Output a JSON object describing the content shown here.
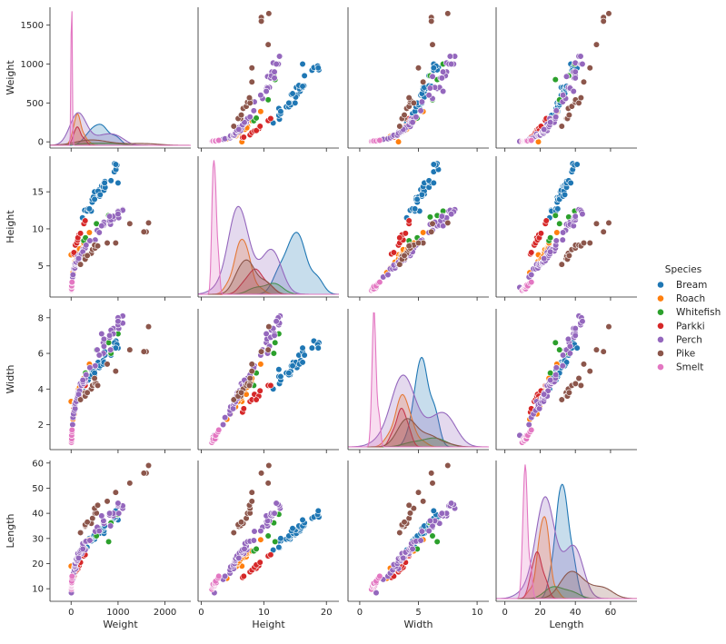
{
  "chart_data": {
    "type": "scatter",
    "subtype": "pairplot",
    "variables": [
      "Weight",
      "Height",
      "Width",
      "Length"
    ],
    "diagonal": "kde",
    "axes": {
      "Weight": {
        "lim": [
          -450,
          2550
        ],
        "ticks": [
          0,
          1000,
          2000
        ],
        "y_ticks": [
          0,
          500,
          1000,
          1500
        ],
        "y_lim": [
          -80,
          1730
        ]
      },
      "Height": {
        "lim": [
          -0.5,
          22
        ],
        "ticks": [
          0,
          10,
          20
        ],
        "y_ticks": [
          5,
          10,
          15
        ],
        "y_lim": [
          0.8,
          19.8
        ]
      },
      "Width": {
        "lim": [
          -1,
          11
        ],
        "ticks": [
          0,
          5,
          10
        ],
        "y_ticks": [
          2,
          4,
          6,
          8
        ],
        "y_lim": [
          0.6,
          8.5
        ]
      },
      "Length": {
        "lim": [
          -5,
          75
        ],
        "ticks": [
          0,
          20,
          40,
          60
        ],
        "y_ticks": [
          10,
          20,
          30,
          40,
          50,
          60
        ],
        "y_lim": [
          5,
          61
        ]
      }
    },
    "legend": {
      "title": "Species",
      "placement": "right"
    },
    "series": [
      {
        "name": "Bream",
        "color": "#1f77b4",
        "points": [
          [
            242,
            11.5,
            4.0,
            25.4
          ],
          [
            290,
            12.5,
            4.3,
            26.3
          ],
          [
            340,
            12.4,
            4.7,
            26.5
          ],
          [
            363,
            12.7,
            4.5,
            29.0
          ],
          [
            430,
            12.4,
            5.1,
            29.0
          ],
          [
            450,
            13.6,
            4.9,
            29.7
          ],
          [
            500,
            14.2,
            4.8,
            29.7
          ],
          [
            390,
            12.7,
            4.7,
            30.0
          ],
          [
            450,
            14.0,
            4.8,
            30.0
          ],
          [
            500,
            14.2,
            5.0,
            30.7
          ],
          [
            475,
            14.3,
            5.0,
            31.0
          ],
          [
            500,
            14.0,
            4.9,
            31.0
          ],
          [
            500,
            15.0,
            5.3,
            31.5
          ],
          [
            600,
            14.7,
            5.5,
            32.0
          ],
          [
            600,
            15.3,
            5.2,
            32.0
          ],
          [
            700,
            15.2,
            5.4,
            32.0
          ],
          [
            700,
            15.8,
            5.4,
            33.0
          ],
          [
            610,
            14.4,
            5.3,
            33.0
          ],
          [
            650,
            15.8,
            5.5,
            33.5
          ],
          [
            575,
            15.1,
            5.5,
            33.5
          ],
          [
            685,
            15.9,
            5.6,
            34.0
          ],
          [
            620,
            14.6,
            5.3,
            34.0
          ],
          [
            680,
            15.7,
            5.4,
            34.5
          ],
          [
            700,
            16.2,
            5.5,
            35.0
          ],
          [
            725,
            15.6,
            5.9,
            35.0
          ],
          [
            720,
            16.4,
            5.9,
            35.0
          ],
          [
            714,
            16.2,
            6.1,
            35.0
          ],
          [
            850,
            16.5,
            5.9,
            36.2
          ],
          [
            1000,
            16.2,
            6.3,
            37.4
          ],
          [
            920,
            17.7,
            6.3,
            38.0
          ],
          [
            955,
            18.0,
            6.7,
            38.5
          ],
          [
            925,
            18.8,
            6.6,
            38.5
          ],
          [
            975,
            18.6,
            6.5,
            39.5
          ],
          [
            950,
            18.7,
            6.3,
            41.0
          ]
        ]
      },
      {
        "name": "Roach",
        "color": "#ff7f0e",
        "points": [
          [
            0,
            6.5,
            3.3,
            19.0
          ],
          [
            40,
            4.1,
            2.3,
            14.1
          ],
          [
            69,
            4.7,
            2.6,
            18.2
          ],
          [
            78,
            5.6,
            3.2,
            18.8
          ],
          [
            87,
            5.5,
            3.0,
            19.8
          ],
          [
            120,
            5.8,
            3.6,
            20.0
          ],
          [
            110,
            5.9,
            3.3,
            20.5
          ],
          [
            120,
            6.1,
            3.5,
            21.0
          ],
          [
            150,
            6.4,
            3.5,
            22.0
          ],
          [
            145,
            6.4,
            3.6,
            22.0
          ],
          [
            160,
            6.9,
            3.7,
            22.5
          ],
          [
            140,
            6.0,
            3.8,
            22.5
          ],
          [
            169,
            7.2,
            3.7,
            22.7
          ],
          [
            161,
            7.0,
            4.0,
            23.5
          ],
          [
            200,
            7.4,
            4.1,
            24.0
          ],
          [
            180,
            7.3,
            4.1,
            24.2
          ],
          [
            290,
            7.4,
            4.5,
            24.9
          ],
          [
            272,
            8.0,
            4.4,
            25.2
          ],
          [
            390,
            9.5,
            5.4,
            29.5
          ],
          [
            270,
            8.1,
            4.6,
            25.0
          ]
        ]
      },
      {
        "name": "Whitefish",
        "color": "#2ca02c",
        "points": [
          [
            270,
            8.4,
            4.2,
            25.0
          ],
          [
            306,
            8.8,
            4.9,
            25.8
          ],
          [
            540,
            10.7,
            6.2,
            31.0
          ],
          [
            800,
            11.8,
            6.6,
            28.7
          ],
          [
            1000,
            12.4,
            7.1,
            39.6
          ],
          [
            850,
            11.6,
            6.0,
            36.2
          ]
        ]
      },
      {
        "name": "Parkki",
        "color": "#d62728",
        "points": [
          [
            55,
            6.6,
            2.7,
            14.5
          ],
          [
            60,
            6.8,
            2.9,
            15.0
          ],
          [
            90,
            7.8,
            3.3,
            16.7
          ],
          [
            120,
            8.1,
            3.4,
            17.4
          ],
          [
            150,
            8.8,
            3.6,
            18.1
          ],
          [
            140,
            8.5,
            3.7,
            18.5
          ],
          [
            170,
            9.2,
            3.6,
            19.2
          ],
          [
            145,
            8.8,
            3.4,
            19.5
          ],
          [
            200,
            9.4,
            3.9,
            20.5
          ],
          [
            273,
            10.7,
            4.2,
            23.0
          ],
          [
            300,
            11.1,
            4.2,
            23.5
          ]
        ]
      },
      {
        "name": "Perch",
        "color": "#9467bd",
        "points": [
          [
            5.9,
            2.1,
            1.4,
            8.4
          ],
          [
            32,
            3.5,
            2.0,
            13.7
          ],
          [
            40,
            3.8,
            2.4,
            15.0
          ],
          [
            51.5,
            4.6,
            2.6,
            16.2
          ],
          [
            70,
            4.6,
            2.8,
            17.4
          ],
          [
            100,
            5.2,
            3.3,
            18.0
          ],
          [
            78,
            4.7,
            3.0,
            18.7
          ],
          [
            80,
            5.1,
            3.1,
            19.0
          ],
          [
            85,
            5.1,
            2.9,
            19.6
          ],
          [
            85,
            5.3,
            3.2,
            20.0
          ],
          [
            110,
            5.3,
            3.5,
            21.0
          ],
          [
            115,
            5.4,
            3.5,
            21.0
          ],
          [
            125,
            5.4,
            3.3,
            21.0
          ],
          [
            130,
            5.5,
            3.5,
            21.3
          ],
          [
            120,
            5.6,
            3.4,
            22.0
          ],
          [
            120,
            5.5,
            3.5,
            22.0
          ],
          [
            130,
            5.7,
            3.6,
            22.0
          ],
          [
            135,
            5.6,
            3.5,
            22.0
          ],
          [
            110,
            5.5,
            3.3,
            22.0
          ],
          [
            130,
            5.9,
            3.5,
            22.5
          ],
          [
            150,
            5.8,
            3.8,
            22.5
          ],
          [
            145,
            5.8,
            3.6,
            22.7
          ],
          [
            150,
            5.7,
            3.6,
            23.0
          ],
          [
            170,
            6.3,
            3.8,
            23.5
          ],
          [
            225,
            6.8,
            4.2,
            24.0
          ],
          [
            145,
            6.3,
            3.6,
            24.0
          ],
          [
            188,
            6.1,
            3.9,
            24.2
          ],
          [
            180,
            6.5,
            3.9,
            24.5
          ],
          [
            197,
            6.4,
            4.3,
            25.0
          ],
          [
            218,
            6.6,
            4.2,
            25.5
          ],
          [
            300,
            7.3,
            4.4,
            25.5
          ],
          [
            260,
            7.0,
            4.3,
            26.2
          ],
          [
            265,
            7.2,
            4.4,
            26.5
          ],
          [
            250,
            7.2,
            4.4,
            27.0
          ],
          [
            250,
            7.0,
            4.4,
            28.0
          ],
          [
            300,
            7.4,
            4.6,
            28.7
          ],
          [
            320,
            7.8,
            4.8,
            28.9
          ],
          [
            514,
            8.5,
            5.3,
            32.8
          ],
          [
            556,
            9.8,
            6.2,
            34.5
          ],
          [
            840,
            10.6,
            6.2,
            35.0
          ],
          [
            685,
            10.4,
            6.6,
            36.5
          ],
          [
            700,
            10.5,
            6.8,
            36.0
          ],
          [
            700,
            10.9,
            6.4,
            37.0
          ],
          [
            690,
            10.6,
            6.0,
            37.0
          ],
          [
            900,
            11.3,
            7.4,
            39.0
          ],
          [
            650,
            10.4,
            7.1,
            39.0
          ],
          [
            820,
            11.1,
            6.9,
            39.3
          ],
          [
            850,
            11.2,
            7.3,
            40.0
          ],
          [
            900,
            11.7,
            7.1,
            40.0
          ],
          [
            1015,
            11.5,
            7.4,
            40.0
          ],
          [
            820,
            11.7,
            7.0,
            40.0
          ],
          [
            1100,
            12.6,
            8.1,
            42.0
          ],
          [
            1000,
            12.4,
            7.6,
            43.0
          ],
          [
            1100,
            12.5,
            7.7,
            43.0
          ],
          [
            1000,
            12.3,
            8.0,
            43.5
          ],
          [
            1000,
            12.0,
            7.8,
            44.0
          ],
          [
            160,
            6.0,
            3.7,
            22.2
          ],
          [
            250,
            6.9,
            4.5,
            25.8
          ],
          [
            400,
            8.4,
            5.2,
            29.2
          ],
          [
            600,
            9.5,
            5.9,
            33.0
          ]
        ]
      },
      {
        "name": "Pike",
        "color": "#8c564b",
        "points": [
          [
            200,
            5.2,
            3.4,
            32.3
          ],
          [
            300,
            6.0,
            3.8,
            34.8
          ],
          [
            300,
            6.3,
            3.6,
            35.1
          ],
          [
            300,
            5.9,
            3.6,
            35.5
          ],
          [
            430,
            6.7,
            4.0,
            36.0
          ],
          [
            345,
            6.4,
            3.8,
            36.5
          ],
          [
            456,
            7.2,
            4.2,
            38.0
          ],
          [
            510,
            7.4,
            4.3,
            40.0
          ],
          [
            540,
            7.8,
            4.3,
            40.1
          ],
          [
            500,
            7.8,
            4.6,
            42.0
          ],
          [
            567,
            7.7,
            4.2,
            43.2
          ],
          [
            770,
            8.1,
            5.4,
            44.8
          ],
          [
            950,
            8.1,
            5.0,
            48.3
          ],
          [
            1250,
            10.7,
            6.2,
            52.0
          ],
          [
            1600,
            9.6,
            6.1,
            56.0
          ],
          [
            1550,
            9.6,
            6.1,
            56.0
          ],
          [
            1650,
            10.8,
            7.5,
            59.0
          ]
        ]
      },
      {
        "name": "Smelt",
        "color": "#e377c2",
        "points": [
          [
            6.7,
            1.7,
            1.0,
            9.8
          ],
          [
            7.5,
            1.9,
            1.2,
            10.5
          ],
          [
            7.0,
            1.8,
            1.1,
            10.6
          ],
          [
            9.7,
            1.9,
            1.1,
            11.0
          ],
          [
            9.8,
            2.1,
            1.2,
            11.2
          ],
          [
            8.7,
            1.9,
            1.3,
            11.3
          ],
          [
            10.0,
            1.9,
            1.2,
            11.8
          ],
          [
            9.9,
            2.2,
            1.3,
            11.8
          ],
          [
            9.8,
            2.3,
            1.2,
            12.0
          ],
          [
            12.2,
            2.2,
            1.2,
            12.2
          ],
          [
            13.4,
            2.4,
            1.4,
            12.4
          ],
          [
            12.2,
            2.3,
            1.4,
            13.0
          ],
          [
            19.7,
            2.7,
            1.6,
            14.3
          ],
          [
            19.9,
            2.8,
            1.7,
            15.0
          ]
        ]
      }
    ]
  }
}
